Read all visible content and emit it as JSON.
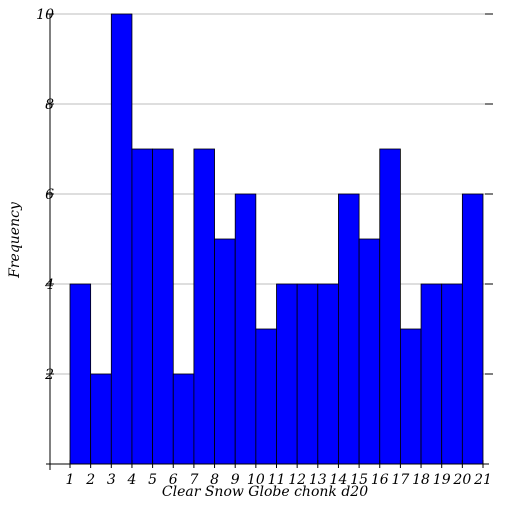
{
  "chart_data": {
    "type": "bar",
    "title": "",
    "xlabel": "Clear Snow Globe chonk d20",
    "ylabel": "Frequency",
    "x_ticks": [
      "1",
      "2",
      "3",
      "4",
      "5",
      "6",
      "7",
      "8",
      "9",
      "10",
      "11",
      "12",
      "13",
      "14",
      "15",
      "16",
      "17",
      "18",
      "19",
      "20",
      "21"
    ],
    "y_ticks": [
      "2",
      "4",
      "6",
      "8",
      "10"
    ],
    "ylim": [
      0,
      10
    ],
    "xlim": [
      1,
      21
    ],
    "grid": true,
    "bar_color": "#0000ff",
    "bins": [
      {
        "start": 1,
        "end": 2,
        "value": 4
      },
      {
        "start": 2,
        "end": 3,
        "value": 2
      },
      {
        "start": 3,
        "end": 4,
        "value": 10
      },
      {
        "start": 4,
        "end": 5,
        "value": 7
      },
      {
        "start": 5,
        "end": 6,
        "value": 7
      },
      {
        "start": 6,
        "end": 7,
        "value": 2
      },
      {
        "start": 7,
        "end": 8,
        "value": 7
      },
      {
        "start": 8,
        "end": 9,
        "value": 5
      },
      {
        "start": 9,
        "end": 10,
        "value": 6
      },
      {
        "start": 10,
        "end": 11,
        "value": 3
      },
      {
        "start": 11,
        "end": 12,
        "value": 4
      },
      {
        "start": 12,
        "end": 13,
        "value": 4
      },
      {
        "start": 13,
        "end": 14,
        "value": 4
      },
      {
        "start": 14,
        "end": 15,
        "value": 6
      },
      {
        "start": 15,
        "end": 16,
        "value": 5
      },
      {
        "start": 16,
        "end": 17,
        "value": 7
      },
      {
        "start": 17,
        "end": 18,
        "value": 3
      },
      {
        "start": 18,
        "end": 19,
        "value": 4
      },
      {
        "start": 19,
        "end": 20,
        "value": 4
      },
      {
        "start": 20,
        "end": 21,
        "value": 6
      }
    ]
  }
}
